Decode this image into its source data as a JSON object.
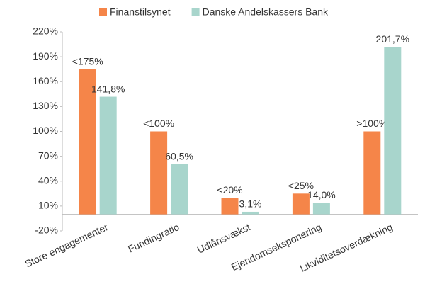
{
  "chart_data": {
    "type": "bar",
    "categories": [
      "Store engagementer",
      "Fundingratio",
      "Udlånsvækst",
      "Ejendomseksponering",
      "Likviditetsoverdækning"
    ],
    "series": [
      {
        "name": "Finanstilsynet",
        "color": "#f58549",
        "values": [
          175,
          100,
          20,
          25,
          100
        ],
        "value_labels": [
          "<175%",
          "<100%",
          "<20%",
          "<25%",
          ">100%"
        ]
      },
      {
        "name": "Danske Andelskassers Bank",
        "color": "#a8d5cc",
        "values": [
          141.8,
          60.5,
          3.1,
          14.0,
          201.7
        ],
        "value_labels": [
          "141,8%",
          "60,5%",
          "3,1%",
          "14,0%",
          "201,7%"
        ]
      }
    ],
    "ylim": [
      -20,
      220
    ],
    "yticks": [
      {
        "value": -20,
        "label": "-20%"
      },
      {
        "value": 10,
        "label": "10%"
      },
      {
        "value": 40,
        "label": "40%"
      },
      {
        "value": 70,
        "label": "70%"
      },
      {
        "value": 100,
        "label": "100%"
      },
      {
        "value": 130,
        "label": "130%"
      },
      {
        "value": 160,
        "label": "160%"
      },
      {
        "value": 190,
        "label": "190%"
      },
      {
        "value": 220,
        "label": "220%"
      }
    ],
    "legend": "top"
  }
}
